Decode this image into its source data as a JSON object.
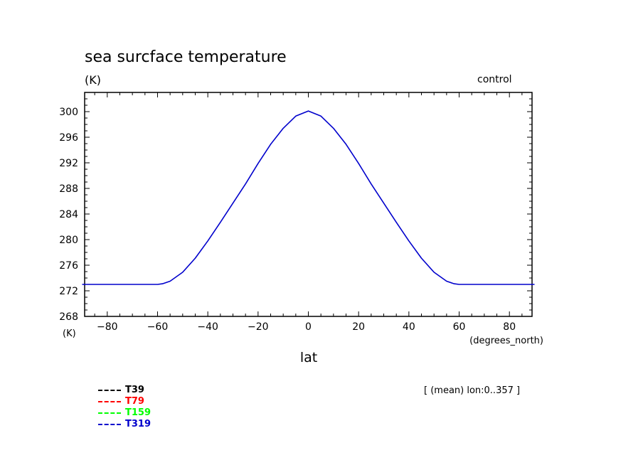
{
  "chart_data": {
    "type": "line",
    "title": "sea surcface temperature",
    "units": "(K)",
    "tag": "control",
    "xlabel": "lat",
    "x_units": "(degrees_north)",
    "y_units_bottom": "(K)",
    "mean_note": "[ (mean) lon:0..357 ]",
    "xlim": [
      -89,
      89
    ],
    "ylim": [
      268,
      303
    ],
    "x_ticks": [
      -80,
      -60,
      -40,
      -20,
      0,
      20,
      40,
      60,
      80
    ],
    "x_tick_labels": [
      "−80",
      "−60",
      "−40",
      "−20",
      "0",
      "20",
      "40",
      "60",
      "80"
    ],
    "y_ticks": [
      268,
      272,
      276,
      280,
      284,
      288,
      292,
      296,
      300
    ],
    "series": [
      {
        "name": "T39",
        "color": "#000000",
        "x": [],
        "y": []
      },
      {
        "name": "T79",
        "color": "#ff0000",
        "x": [],
        "y": []
      },
      {
        "name": "T159",
        "color": "#00ff00",
        "x": [],
        "y": []
      },
      {
        "name": "T319",
        "color": "#0000cc",
        "x": [
          -90,
          -80,
          -70,
          -60,
          -58,
          -55,
          -50,
          -45,
          -40,
          -35,
          -30,
          -25,
          -20,
          -15,
          -10,
          -5,
          0,
          5,
          10,
          15,
          20,
          25,
          30,
          35,
          40,
          45,
          50,
          55,
          58,
          60,
          70,
          80,
          90
        ],
        "y": [
          273.0,
          273.0,
          273.0,
          273.0,
          273.1,
          273.5,
          274.9,
          277.1,
          279.8,
          282.7,
          285.7,
          288.7,
          291.9,
          294.9,
          297.4,
          299.3,
          300.1,
          299.3,
          297.4,
          294.9,
          291.9,
          288.7,
          285.7,
          282.7,
          279.8,
          277.1,
          274.9,
          273.5,
          273.1,
          273.0,
          273.0,
          273.0,
          273.0
        ]
      }
    ]
  }
}
